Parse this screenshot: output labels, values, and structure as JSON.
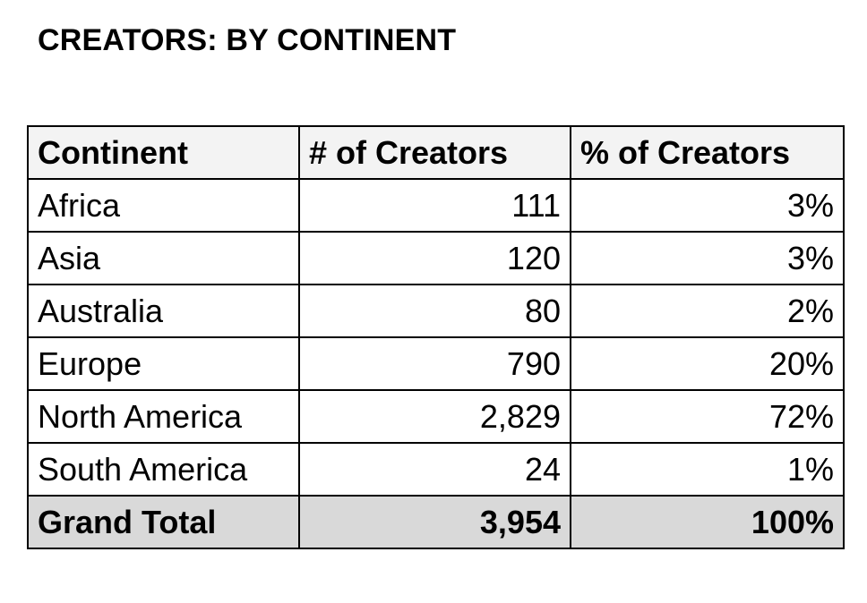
{
  "title": "CREATORS: BY CONTINENT",
  "chart_data": {
    "type": "table",
    "title": "CREATORS: BY CONTINENT",
    "columns": [
      "Continent",
      "# of Creators",
      "% of Creators"
    ],
    "rows": [
      {
        "continent": "Africa",
        "creators": "111",
        "percent": "3%"
      },
      {
        "continent": "Asia",
        "creators": "120",
        "percent": "3%"
      },
      {
        "continent": "Australia",
        "creators": "80",
        "percent": "2%"
      },
      {
        "continent": "Europe",
        "creators": "790",
        "percent": "20%"
      },
      {
        "continent": "North America",
        "creators": "2,829",
        "percent": "72%"
      },
      {
        "continent": "South America",
        "creators": "24",
        "percent": "1%"
      }
    ],
    "total": {
      "label": "Grand Total",
      "creators": "3,954",
      "percent": "100%"
    }
  },
  "colors": {
    "header_bg": "#f3f3f3",
    "total_bg": "#d9d9d9",
    "border": "#000000"
  }
}
